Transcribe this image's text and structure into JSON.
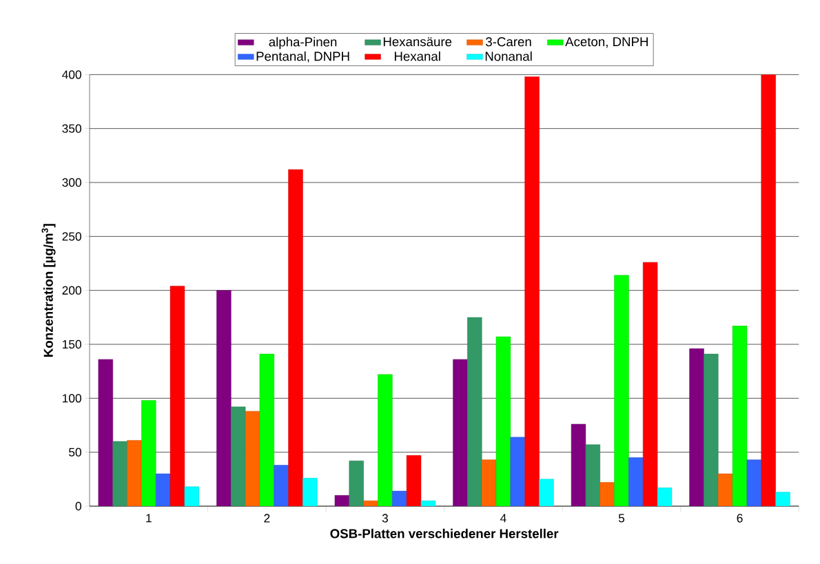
{
  "chart_data": {
    "type": "bar",
    "xlabel": "OSB-Platten verschiedener Hersteller",
    "ylabel": "Konzentration [µg/m$^{3}$]",
    "categories": [
      "1",
      "2",
      "3",
      "4",
      "5",
      "6"
    ],
    "series": [
      {
        "name": "alpha-Pinen",
        "color": "#800080",
        "values": [
          136,
          200,
          10,
          136,
          76,
          146
        ]
      },
      {
        "name": "Hexansäure",
        "color": "#339966",
        "values": [
          60,
          92,
          42,
          175,
          57,
          141
        ]
      },
      {
        "name": "3-Caren",
        "color": "#ff6600",
        "values": [
          61,
          88,
          5,
          43,
          22,
          30
        ]
      },
      {
        "name": "Aceton, DNPH",
        "color": "#00ff00",
        "values": [
          98,
          141,
          122,
          157,
          214,
          167
        ]
      },
      {
        "name": "Pentanal, DNPH",
        "color": "#3366ff",
        "values": [
          30,
          38,
          14,
          64,
          45,
          43
        ]
      },
      {
        "name": "Hexanal",
        "color": "#ff0000",
        "values": [
          204,
          312,
          47,
          398,
          226,
          400
        ]
      },
      {
        "name": "Nonanal",
        "color": "#00ffff",
        "values": [
          18,
          26,
          5,
          25,
          17,
          13
        ]
      }
    ],
    "ylim": [
      0,
      400
    ],
    "yticks": [
      0,
      50,
      100,
      150,
      200,
      250,
      300,
      350,
      400
    ],
    "grid": "y",
    "legend": "top"
  }
}
